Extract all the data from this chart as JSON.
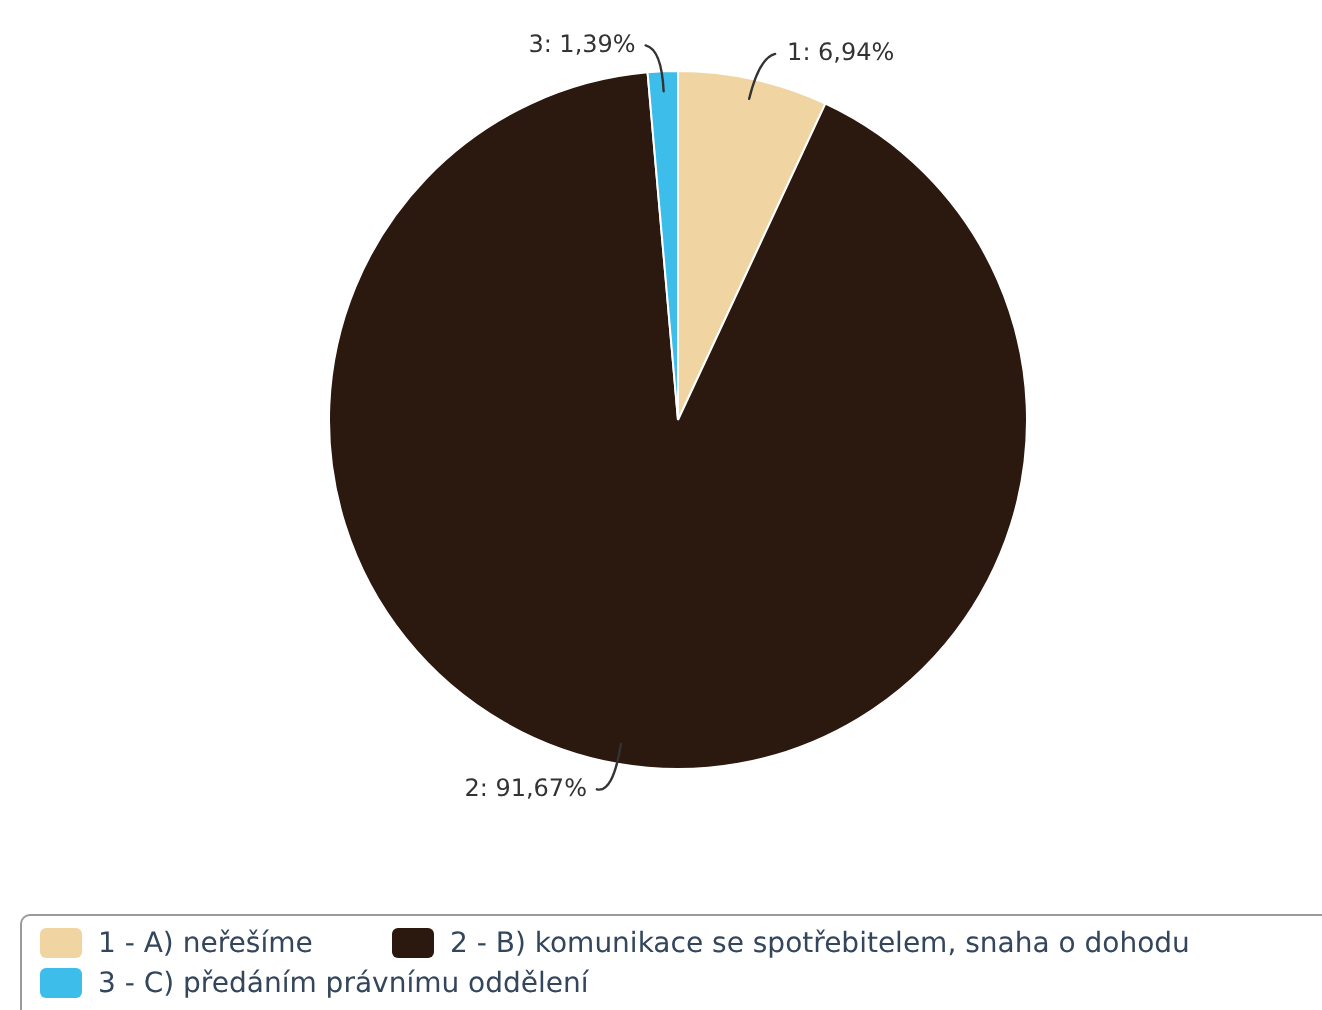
{
  "chart_data": {
    "type": "pie",
    "categories": [
      "1 - A) neřešíme",
      "2 - B) komunikace se spotřebitelem, snaha o dohodu",
      "3 - C) předáním právnímu oddělení"
    ],
    "values": [
      6.94,
      91.67,
      1.39
    ],
    "colors": [
      "#f0d5a2",
      "#2b180e",
      "#3dbde9"
    ],
    "value_labels": [
      "1: 6,94%",
      "2: 91,67%",
      "3: 1,39%"
    ],
    "legend": "bottom"
  }
}
